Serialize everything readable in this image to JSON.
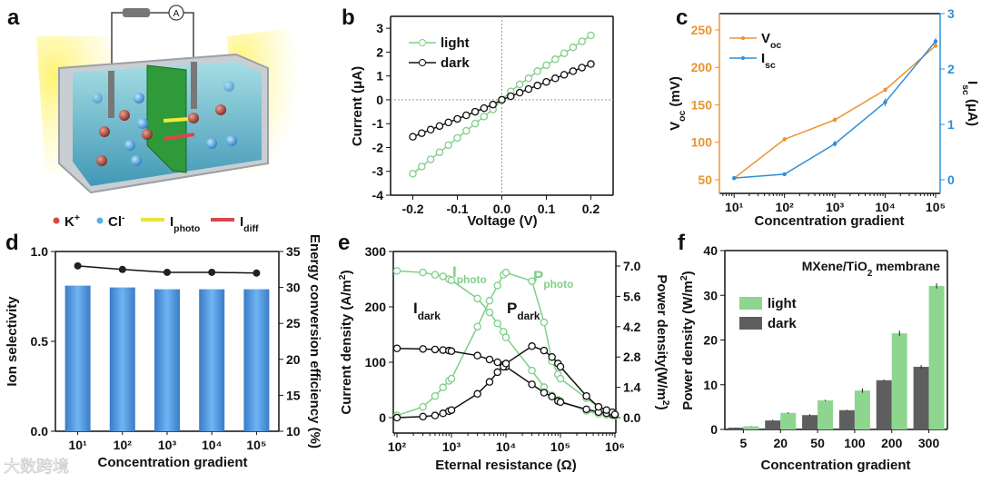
{
  "panel_letters": [
    "a",
    "b",
    "c",
    "d",
    "e",
    "f"
  ],
  "schematic": {
    "ammeter_symbol": "A",
    "legend": [
      {
        "text": "K",
        "sup": "+",
        "color": "#d9483b"
      },
      {
        "text": "Cl",
        "sup": "-",
        "color": "#5aaee8"
      },
      {
        "text": "I",
        "sub": "photo",
        "color": "#e9e23a"
      },
      {
        "text": "I",
        "sub": "diff",
        "color": "#d9484a"
      }
    ]
  },
  "watermark": "大数跨境",
  "chart_data": [
    {
      "id": "b",
      "type": "line",
      "xlabel": {
        "text": "Voltage (V)"
      },
      "ylabel": {
        "text": "Current (μA)"
      },
      "xlim": [
        -0.25,
        0.25
      ],
      "ylim": [
        -4,
        3.5
      ],
      "xticks": [
        -0.2,
        -0.1,
        0.0,
        0.1,
        0.2
      ],
      "xtick_labels": [
        "-0.2",
        "-0.1",
        "0.0",
        "0.1",
        "0.2"
      ],
      "yticks": [
        -4,
        -3,
        -2,
        -1,
        0,
        1,
        2,
        3
      ],
      "ytick_labels": [
        "-4",
        "-3",
        "-2",
        "-1",
        "0",
        "1",
        "2",
        "3"
      ],
      "legend_position": "top-left",
      "x": [
        -0.2,
        -0.18,
        -0.16,
        -0.14,
        -0.12,
        -0.1,
        -0.08,
        -0.06,
        -0.04,
        -0.02,
        0.0,
        0.02,
        0.04,
        0.06,
        0.08,
        0.1,
        0.12,
        0.14,
        0.16,
        0.18,
        0.2
      ],
      "series": [
        {
          "name": "light",
          "color": "#7fcf87",
          "values": [
            -3.1,
            -2.8,
            -2.5,
            -2.2,
            -1.9,
            -1.6,
            -1.3,
            -1.0,
            -0.7,
            -0.4,
            0.0,
            0.35,
            0.65,
            0.9,
            1.2,
            1.45,
            1.7,
            1.95,
            2.2,
            2.45,
            2.7
          ]
        },
        {
          "name": "dark",
          "color": "#111111",
          "values": [
            -1.55,
            -1.4,
            -1.25,
            -1.1,
            -0.95,
            -0.8,
            -0.65,
            -0.5,
            -0.35,
            -0.2,
            0.0,
            0.15,
            0.3,
            0.45,
            0.6,
            0.75,
            0.9,
            1.05,
            1.2,
            1.35,
            1.5
          ]
        }
      ]
    },
    {
      "id": "c",
      "type": "line",
      "xlabel": {
        "text": "Concentration gradient"
      },
      "ylabel": {
        "text": "V",
        "sub": "oc",
        "after": " (mV)"
      },
      "y2label": {
        "text": "I",
        "sub": "sc",
        "after": " (μA)"
      },
      "xscale": "log",
      "xlim": [
        5.1,
        123000
      ],
      "ylim": [
        31.8,
        271.8
      ],
      "y2lim": [
        -0.246,
        3
      ],
      "xticks": [
        10,
        100,
        1000,
        10000,
        100000
      ],
      "xtick_labels": [
        "10¹",
        "10²",
        "10³",
        "10⁴",
        "10⁵"
      ],
      "yticks": [
        50,
        100,
        150,
        200,
        250
      ],
      "ytick_labels": [
        "50",
        "100",
        "150",
        "200",
        "250"
      ],
      "y2ticks": [
        0,
        1,
        2,
        3
      ],
      "y2tick_labels": [
        "0",
        "1",
        "2",
        "3"
      ],
      "left_axis_color": "#e8952e",
      "right_axis_color": "#2f8fd8",
      "legend_position": "top-left",
      "x": [
        10,
        100,
        1000,
        10000,
        100000
      ],
      "series": [
        {
          "name": {
            "text": "V",
            "sub": "oc"
          },
          "axis": "left",
          "color": "#e8952e",
          "values": [
            52,
            104,
            130,
            170,
            229
          ],
          "err": [
            2,
            3,
            3,
            3,
            3
          ]
        },
        {
          "name": {
            "text": "I",
            "sub": "sc"
          },
          "axis": "right",
          "color": "#2f8fd8",
          "values": [
            0.03,
            0.1,
            0.65,
            1.4,
            2.5
          ],
          "err": [
            0.03,
            0.03,
            0.05,
            0.07,
            0.05
          ]
        }
      ]
    },
    {
      "id": "d",
      "type": "bar",
      "xlabel": {
        "text": "Concentration gradient"
      },
      "ylabel": {
        "text": "Ion selectivity"
      },
      "y2label": {
        "text": "Energy conversion efficiency (%)"
      },
      "categories": [
        "10¹",
        "10²",
        "10³",
        "10⁴",
        "10⁵"
      ],
      "ylim": [
        0,
        1.0
      ],
      "y2lim": [
        10,
        35
      ],
      "yticks": [
        0,
        0.5,
        1.0
      ],
      "ytick_labels": [
        "0.0",
        "0.5",
        "1.0"
      ],
      "y2ticks": [
        10,
        15,
        20,
        25,
        30,
        35
      ],
      "y2tick_labels": [
        "10",
        "15",
        "20",
        "25",
        "30",
        "35"
      ],
      "series": [
        {
          "name": "Ion selectivity",
          "axis": "left",
          "kind": "bar",
          "color": "#4a93de",
          "values": [
            0.81,
            0.8,
            0.79,
            0.79,
            0.79
          ]
        },
        {
          "name": "Energy conversion efficiency",
          "axis": "right",
          "kind": "line",
          "color": "#111111",
          "values": [
            33.0,
            32.5,
            32.1,
            32.1,
            32.0
          ]
        }
      ]
    },
    {
      "id": "e",
      "type": "line",
      "xlabel": {
        "text": "Eternal resistance (Ω)"
      },
      "ylabel": {
        "text": "Current density (A/m",
        "sup": "2",
        "after": ")"
      },
      "y2label": {
        "text": "Power density(W/m",
        "sup": "2",
        "after": ")"
      },
      "xscale": "log",
      "xlim": [
        85.7,
        1040000
      ],
      "ylim": [
        -27.9,
        300
      ],
      "y2lim": [
        -0.71,
        7.67
      ],
      "xticks": [
        100,
        1000,
        10000,
        100000,
        1000000
      ],
      "xtick_labels": [
        "10²",
        "10³",
        "10⁴",
        "10⁵",
        "10⁶"
      ],
      "yticks": [
        0,
        100,
        200,
        300
      ],
      "ytick_labels": [
        "0",
        "100",
        "200",
        "300"
      ],
      "y2ticks": [
        0,
        1.4,
        2.8,
        4.2,
        5.6,
        7.0
      ],
      "y2tick_labels": [
        "0.0",
        "1.4",
        "2.8",
        "4.2",
        "5.6",
        "7.0"
      ],
      "x": [
        100,
        300,
        500,
        700,
        900,
        1000,
        3000,
        5000,
        7000,
        9000,
        10000,
        30000,
        50000,
        70000,
        90000,
        100000,
        300000,
        500000,
        700000,
        900000,
        1000000
      ],
      "series": [
        {
          "name": {
            "text": "I",
            "sub": "photo"
          },
          "axis": "left",
          "color": "#7fcf87",
          "values": [
            265,
            262,
            258,
            255,
            250,
            248,
            215,
            190,
            170,
            155,
            145,
            85,
            55,
            40,
            32,
            30,
            12,
            7,
            5,
            4,
            3
          ]
        },
        {
          "name": {
            "text": "P",
            "sub": "photo"
          },
          "axis": "right",
          "color": "#7fcf87",
          "values": [
            0.1,
            0.5,
            1.0,
            1.4,
            1.7,
            1.8,
            4.2,
            5.4,
            6.1,
            6.6,
            6.7,
            6.3,
            4.4,
            2.6,
            2.0,
            1.8,
            0.9,
            0.5,
            0.35,
            0.25,
            0.15
          ]
        },
        {
          "name": {
            "text": "I",
            "sub": "dark"
          },
          "axis": "left",
          "color": "#111111",
          "values": [
            125,
            124,
            123,
            122,
            121,
            120,
            112,
            105,
            100,
            95,
            92,
            60,
            45,
            38,
            30,
            28,
            15,
            10,
            8,
            6,
            5
          ]
        },
        {
          "name": {
            "text": "P",
            "sub": "dark"
          },
          "axis": "right",
          "color": "#111111",
          "values": [
            0,
            0.05,
            0.1,
            0.2,
            0.3,
            0.35,
            1.1,
            1.65,
            2.1,
            2.35,
            2.5,
            3.3,
            3.1,
            2.8,
            2.5,
            2.35,
            1.0,
            0.5,
            0.35,
            0.25,
            0.15
          ]
        }
      ]
    },
    {
      "id": "f",
      "type": "bar",
      "title": {
        "text": "MXene/TiO",
        "sub": "2",
        "after": " membrane"
      },
      "xlabel": {
        "text": "Concentration gradient"
      },
      "ylabel": {
        "text": "Power density (W/m",
        "sup": "2",
        "after": ")"
      },
      "categories": [
        "5",
        "20",
        "50",
        "100",
        "200",
        "300"
      ],
      "ylim": [
        0,
        40
      ],
      "yticks": [
        0,
        10,
        20,
        30,
        40
      ],
      "ytick_labels": [
        "0",
        "10",
        "20",
        "30",
        "40"
      ],
      "legend_position": "upper-left",
      "series": [
        {
          "name": "dark",
          "color": "#5e5e5e",
          "values": [
            0.4,
            2.0,
            3.2,
            4.3,
            11.0,
            14.0
          ],
          "err": [
            0.05,
            0.15,
            0.2,
            0.1,
            0.15,
            0.4
          ]
        },
        {
          "name": "light",
          "color": "#8ed68f",
          "values": [
            0.7,
            3.7,
            6.5,
            8.7,
            21.5,
            32.1
          ],
          "err": [
            0.05,
            0.15,
            0.15,
            0.5,
            0.6,
            0.6
          ]
        }
      ]
    }
  ]
}
